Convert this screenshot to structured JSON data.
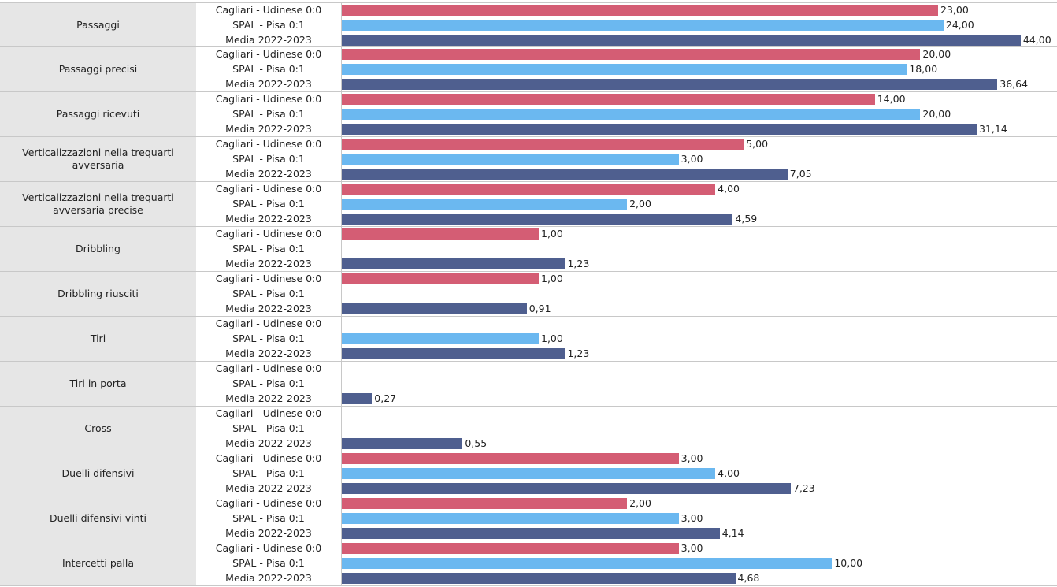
{
  "chart_data": {
    "type": "bar",
    "orientation": "horizontal",
    "scale": "log",
    "title": "",
    "series": [
      {
        "name": "Cagliari - Udinese 0:0",
        "color": "#d45d74"
      },
      {
        "name": "SPAL - Pisa 0:1",
        "color": "#6bb8f0"
      },
      {
        "name": "Media 2022-2023",
        "color": "#4f5f8f"
      }
    ],
    "categories": [
      "Passaggi",
      "Passaggi precisi",
      "Passaggi ricevuti",
      "Verticalizzazioni nella trequarti avversaria",
      "Verticalizzazioni nella trequarti avversaria precise",
      "Dribbling",
      "Dribbling riusciti",
      "Tiri",
      "Tiri in porta",
      "Cross",
      "Duelli difensivi",
      "Duelli difensivi vinti",
      "Intercetti palla"
    ],
    "values": [
      [
        23.0,
        24.0,
        44.0
      ],
      [
        20.0,
        18.0,
        36.64
      ],
      [
        14.0,
        20.0,
        31.14
      ],
      [
        5.0,
        3.0,
        7.05
      ],
      [
        4.0,
        2.0,
        4.59
      ],
      [
        1.0,
        null,
        1.23
      ],
      [
        1.0,
        null,
        0.91
      ],
      [
        null,
        1.0,
        1.23
      ],
      [
        null,
        null,
        0.27
      ],
      [
        null,
        null,
        0.55
      ],
      [
        3.0,
        4.0,
        7.23
      ],
      [
        2.0,
        3.0,
        4.14
      ],
      [
        3.0,
        10.0,
        4.68
      ]
    ],
    "value_labels": [
      [
        "23,00",
        "24,00",
        "44,00"
      ],
      [
        "20,00",
        "18,00",
        "36,64"
      ],
      [
        "14,00",
        "20,00",
        "31,14"
      ],
      [
        "5,00",
        "3,00",
        "7,05"
      ],
      [
        "4,00",
        "2,00",
        "4,59"
      ],
      [
        "1,00",
        "",
        "1,23"
      ],
      [
        "1,00",
        "",
        "0,91"
      ],
      [
        "",
        "1,00",
        "1,23"
      ],
      [
        "",
        "",
        "0,27"
      ],
      [
        "",
        "",
        "0,55"
      ],
      [
        "3,00",
        "4,00",
        "7,23"
      ],
      [
        "2,00",
        "3,00",
        "4,14"
      ],
      [
        "3,00",
        "10,00",
        "4,68"
      ]
    ],
    "xlabel": "",
    "ylabel": "",
    "grid": false,
    "legend": "none"
  }
}
